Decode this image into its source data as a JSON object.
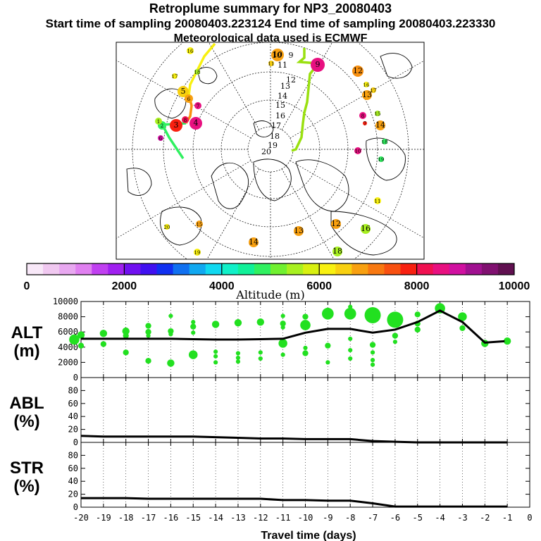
{
  "header": {
    "title": "Retroplume summary for NP3_20080403",
    "sampling_line": "Start time of sampling 20080403.223124     End time of sampling 20080403.223330",
    "met_line": "Meteorological data used is ECMWF"
  },
  "map": {
    "day_labels": [
      "10",
      "9",
      "11",
      "12",
      "13",
      "14",
      "15",
      "16",
      "17",
      "18",
      "19",
      "20"
    ],
    "cluster_labels": [
      "10",
      "9",
      "11",
      "1",
      "2",
      "3",
      "4",
      "5",
      "6",
      "7",
      "8",
      "12",
      "13",
      "14",
      "15",
      "16",
      "17",
      "18",
      "19",
      "20"
    ]
  },
  "colorbar": {
    "label": "Altitude (m)",
    "ticks": [
      "0",
      "2000",
      "4000",
      "6000",
      "8000",
      "10000"
    ],
    "colors": [
      "#f8e8f8",
      "#f0c8f0",
      "#e8a8f0",
      "#e080f0",
      "#c040f0",
      "#a020f0",
      "#7010f0",
      "#4010f0",
      "#1030f0",
      "#1070f0",
      "#10a8f0",
      "#10d8f0",
      "#10f0c8",
      "#10f098",
      "#30f060",
      "#70f030",
      "#a8f020",
      "#d8f010",
      "#f8f010",
      "#f8d010",
      "#f8a010",
      "#f87810",
      "#f85010",
      "#f82010",
      "#f01050",
      "#e81080",
      "#d010a0",
      "#a01090",
      "#801070",
      "#601050"
    ]
  },
  "colors": {
    "ground_track": "#22e020",
    "mean_line": "#000000",
    "frame": "#000000"
  },
  "chart_data": [
    {
      "type": "line",
      "panel": "ALT",
      "ylabel_lines": [
        "ALT",
        "(m)"
      ],
      "ylim": [
        0,
        10000
      ],
      "yticks": [
        "0",
        "2000",
        "4000",
        "6000",
        "8000",
        "10000"
      ],
      "x": [
        -20,
        -19,
        -18,
        -17,
        -16,
        -15,
        -14,
        -13,
        -12,
        -11,
        -10,
        -9,
        -8,
        -7,
        -6,
        -5,
        -4,
        -3,
        -2,
        -1
      ],
      "series": [
        {
          "name": "mean altitude",
          "values": [
            5100,
            5100,
            5100,
            5100,
            5100,
            5050,
            5000,
            5000,
            5050,
            5100,
            5900,
            6400,
            6400,
            5900,
            6300,
            7300,
            8800,
            7300,
            4600,
            4800
          ]
        }
      ],
      "clusters": [
        {
          "x": -20.3,
          "y": 5000,
          "w": 6
        },
        {
          "x": -20,
          "y": 5600,
          "w": 4
        },
        {
          "x": -20,
          "y": 4200,
          "w": 3
        },
        {
          "x": -19,
          "y": 5800,
          "w": 4
        },
        {
          "x": -19,
          "y": 4400,
          "w": 3
        },
        {
          "x": -18,
          "y": 6100,
          "w": 4
        },
        {
          "x": -18,
          "y": 5500,
          "w": 3
        },
        {
          "x": -18,
          "y": 3300,
          "w": 3
        },
        {
          "x": -17,
          "y": 6800,
          "w": 3
        },
        {
          "x": -17,
          "y": 6000,
          "w": 3
        },
        {
          "x": -17,
          "y": 5500,
          "w": 2
        },
        {
          "x": -17,
          "y": 2200,
          "w": 3
        },
        {
          "x": -16,
          "y": 8100,
          "w": 2
        },
        {
          "x": -16,
          "y": 6100,
          "w": 3
        },
        {
          "x": -16,
          "y": 5700,
          "w": 2
        },
        {
          "x": -16,
          "y": 1900,
          "w": 4
        },
        {
          "x": -15,
          "y": 7300,
          "w": 2
        },
        {
          "x": -15,
          "y": 6700,
          "w": 3
        },
        {
          "x": -15,
          "y": 5900,
          "w": 2
        },
        {
          "x": -15,
          "y": 3000,
          "w": 5
        },
        {
          "x": -14,
          "y": 7000,
          "w": 4
        },
        {
          "x": -14,
          "y": 3400,
          "w": 2
        },
        {
          "x": -14,
          "y": 2800,
          "w": 2
        },
        {
          "x": -14,
          "y": 2000,
          "w": 2
        },
        {
          "x": -13,
          "y": 7200,
          "w": 4
        },
        {
          "x": -13,
          "y": 3200,
          "w": 2
        },
        {
          "x": -13,
          "y": 2600,
          "w": 2
        },
        {
          "x": -13,
          "y": 2100,
          "w": 2
        },
        {
          "x": -12,
          "y": 7300,
          "w": 4
        },
        {
          "x": -12,
          "y": 3300,
          "w": 2
        },
        {
          "x": -12,
          "y": 2500,
          "w": 2
        },
        {
          "x": -11,
          "y": 8100,
          "w": 2
        },
        {
          "x": -11,
          "y": 7100,
          "w": 3
        },
        {
          "x": -11,
          "y": 6600,
          "w": 2
        },
        {
          "x": -11,
          "y": 4500,
          "w": 5
        },
        {
          "x": -11,
          "y": 3000,
          "w": 2
        },
        {
          "x": -10,
          "y": 8000,
          "w": 3
        },
        {
          "x": -10,
          "y": 6900,
          "w": 6
        },
        {
          "x": -10,
          "y": 3200,
          "w": 3
        },
        {
          "x": -10,
          "y": 3900,
          "w": 2
        },
        {
          "x": -9,
          "y": 8400,
          "w": 7
        },
        {
          "x": -9,
          "y": 4200,
          "w": 3
        },
        {
          "x": -9,
          "y": 2000,
          "w": 2
        },
        {
          "x": -8,
          "y": 9300,
          "w": 2
        },
        {
          "x": -8,
          "y": 8400,
          "w": 7
        },
        {
          "x": -8,
          "y": 5100,
          "w": 2
        },
        {
          "x": -8,
          "y": 3600,
          "w": 2
        },
        {
          "x": -8,
          "y": 2500,
          "w": 2
        },
        {
          "x": -7,
          "y": 8200,
          "w": 10
        },
        {
          "x": -7,
          "y": 4300,
          "w": 3
        },
        {
          "x": -7,
          "y": 3300,
          "w": 2
        },
        {
          "x": -7,
          "y": 2300,
          "w": 2
        },
        {
          "x": -7,
          "y": 1700,
          "w": 2
        },
        {
          "x": -6,
          "y": 7600,
          "w": 10
        },
        {
          "x": -6,
          "y": 5500,
          "w": 3
        },
        {
          "x": -6,
          "y": 4700,
          "w": 2
        },
        {
          "x": -5,
          "y": 8300,
          "w": 3
        },
        {
          "x": -5,
          "y": 7100,
          "w": 3
        },
        {
          "x": -5,
          "y": 6300,
          "w": 3
        },
        {
          "x": -4,
          "y": 9100,
          "w": 6
        },
        {
          "x": -3,
          "y": 8000,
          "w": 5
        },
        {
          "x": -3,
          "y": 6500,
          "w": 3
        },
        {
          "x": -2,
          "y": 4500,
          "w": 4
        },
        {
          "x": -1,
          "y": 4800,
          "w": 4
        }
      ]
    },
    {
      "type": "line",
      "panel": "ABL",
      "ylabel_lines": [
        "ABL",
        "(%)"
      ],
      "ylim": [
        0,
        100
      ],
      "yticks": [
        "0",
        "20",
        "40",
        "60",
        "80"
      ],
      "x": [
        -20,
        -19,
        -18,
        -17,
        -16,
        -15,
        -14,
        -13,
        -12,
        -11,
        -10,
        -9,
        -8,
        -7,
        -6,
        -5,
        -4,
        -3,
        -2,
        -1
      ],
      "series": [
        {
          "name": "ABL fraction",
          "values": [
            10,
            9,
            9,
            9,
            9,
            9,
            8,
            7,
            6,
            6,
            5,
            5,
            5,
            2,
            1,
            0,
            0,
            0,
            0,
            0
          ]
        }
      ]
    },
    {
      "type": "line",
      "panel": "STR",
      "ylabel_lines": [
        "STR",
        "(%)"
      ],
      "ylim": [
        0,
        100
      ],
      "yticks": [
        "0",
        "20",
        "40",
        "60",
        "80"
      ],
      "x": [
        -20,
        -19,
        -18,
        -17,
        -16,
        -15,
        -14,
        -13,
        -12,
        -11,
        -10,
        -9,
        -8,
        -7,
        -6,
        -5,
        -4,
        -3,
        -2,
        -1
      ],
      "xlabel": "Travel time (days)",
      "xticks": [
        "-20",
        "-19",
        "-18",
        "-17",
        "-16",
        "-15",
        "-14",
        "-13",
        "-12",
        "-11",
        "-10",
        "-9",
        "-8",
        "-7",
        "-6",
        "-5",
        "-4",
        "-3",
        "-2",
        "-1",
        "0"
      ],
      "series": [
        {
          "name": "stratospheric fraction",
          "values": [
            14,
            14,
            14,
            13,
            13,
            13,
            13,
            13,
            13,
            11,
            11,
            10,
            10,
            6,
            1,
            1,
            1,
            1,
            1,
            1
          ]
        }
      ]
    }
  ]
}
